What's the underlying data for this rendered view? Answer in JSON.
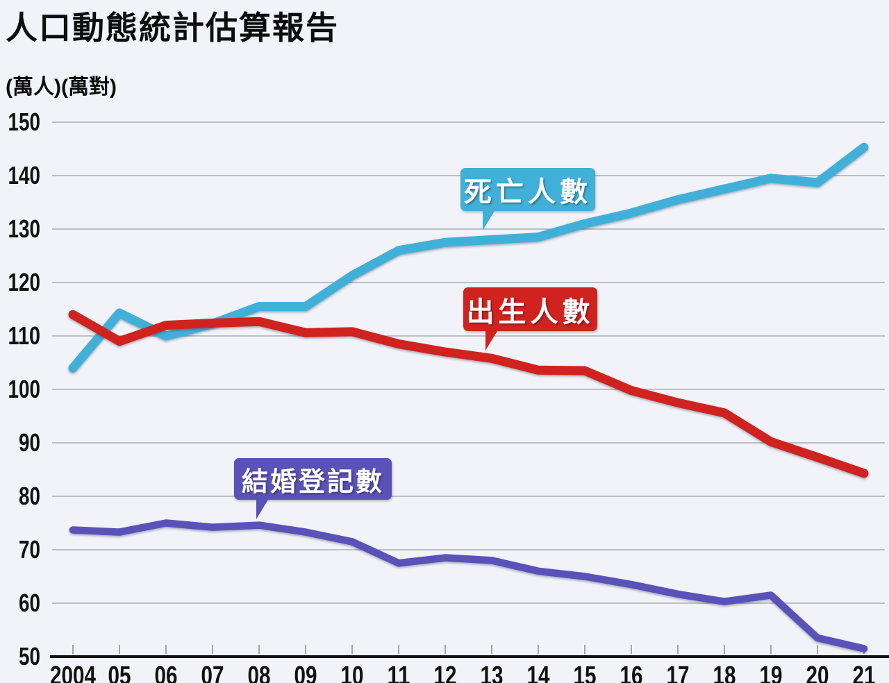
{
  "header": {
    "title": "人口動態統計估算報告",
    "unit_label": "(萬人)(萬對)"
  },
  "chart_data": {
    "type": "line",
    "title": "人口動態統計估算報告",
    "ylabel": "(萬人)(萬對)",
    "ylim": [
      50,
      150
    ],
    "ytick_step": 10,
    "grid": true,
    "legend_position": "in-plot callout bubbles",
    "x_labels": [
      "2004",
      "05",
      "06",
      "07",
      "08",
      "09",
      "10",
      "11",
      "12",
      "13",
      "14",
      "15",
      "16",
      "17",
      "18",
      "19",
      "20",
      "21"
    ],
    "series": [
      {
        "name": "死亡人數",
        "color": "#41b0d9",
        "values": [
          104,
          114.3,
          110,
          112.3,
          115.5,
          115.5,
          121.3,
          126,
          127.5,
          128,
          128.5,
          131,
          133,
          135.5,
          137.5,
          139.5,
          138.7,
          145.3
        ]
      },
      {
        "name": "出生人數",
        "color": "#d0231f",
        "values": [
          114,
          109,
          112,
          112.4,
          112.7,
          110.6,
          110.8,
          108.5,
          107,
          105.8,
          103.6,
          103.5,
          99.8,
          97.5,
          95.6,
          90.2,
          87.3,
          84.3
        ]
      },
      {
        "name": "結婚登記數",
        "color": "#5a52b8",
        "values": [
          73.7,
          73.3,
          75,
          74.2,
          74.6,
          73.3,
          71.5,
          67.5,
          68.5,
          68,
          66,
          65,
          63.5,
          61.7,
          60.3,
          61.5,
          53.5,
          51.5
        ]
      }
    ],
    "annotations": [
      {
        "label": "死亡人數",
        "color": "#41b0d9"
      },
      {
        "label": "出生人數",
        "color": "#d0231f"
      },
      {
        "label": "結婚登記數",
        "color": "#5a52b8"
      }
    ]
  },
  "colors": {
    "background": "#f1f3f8",
    "gridline": "#9aa0a8",
    "axis": "#111111",
    "text": "#0d0d0d"
  }
}
